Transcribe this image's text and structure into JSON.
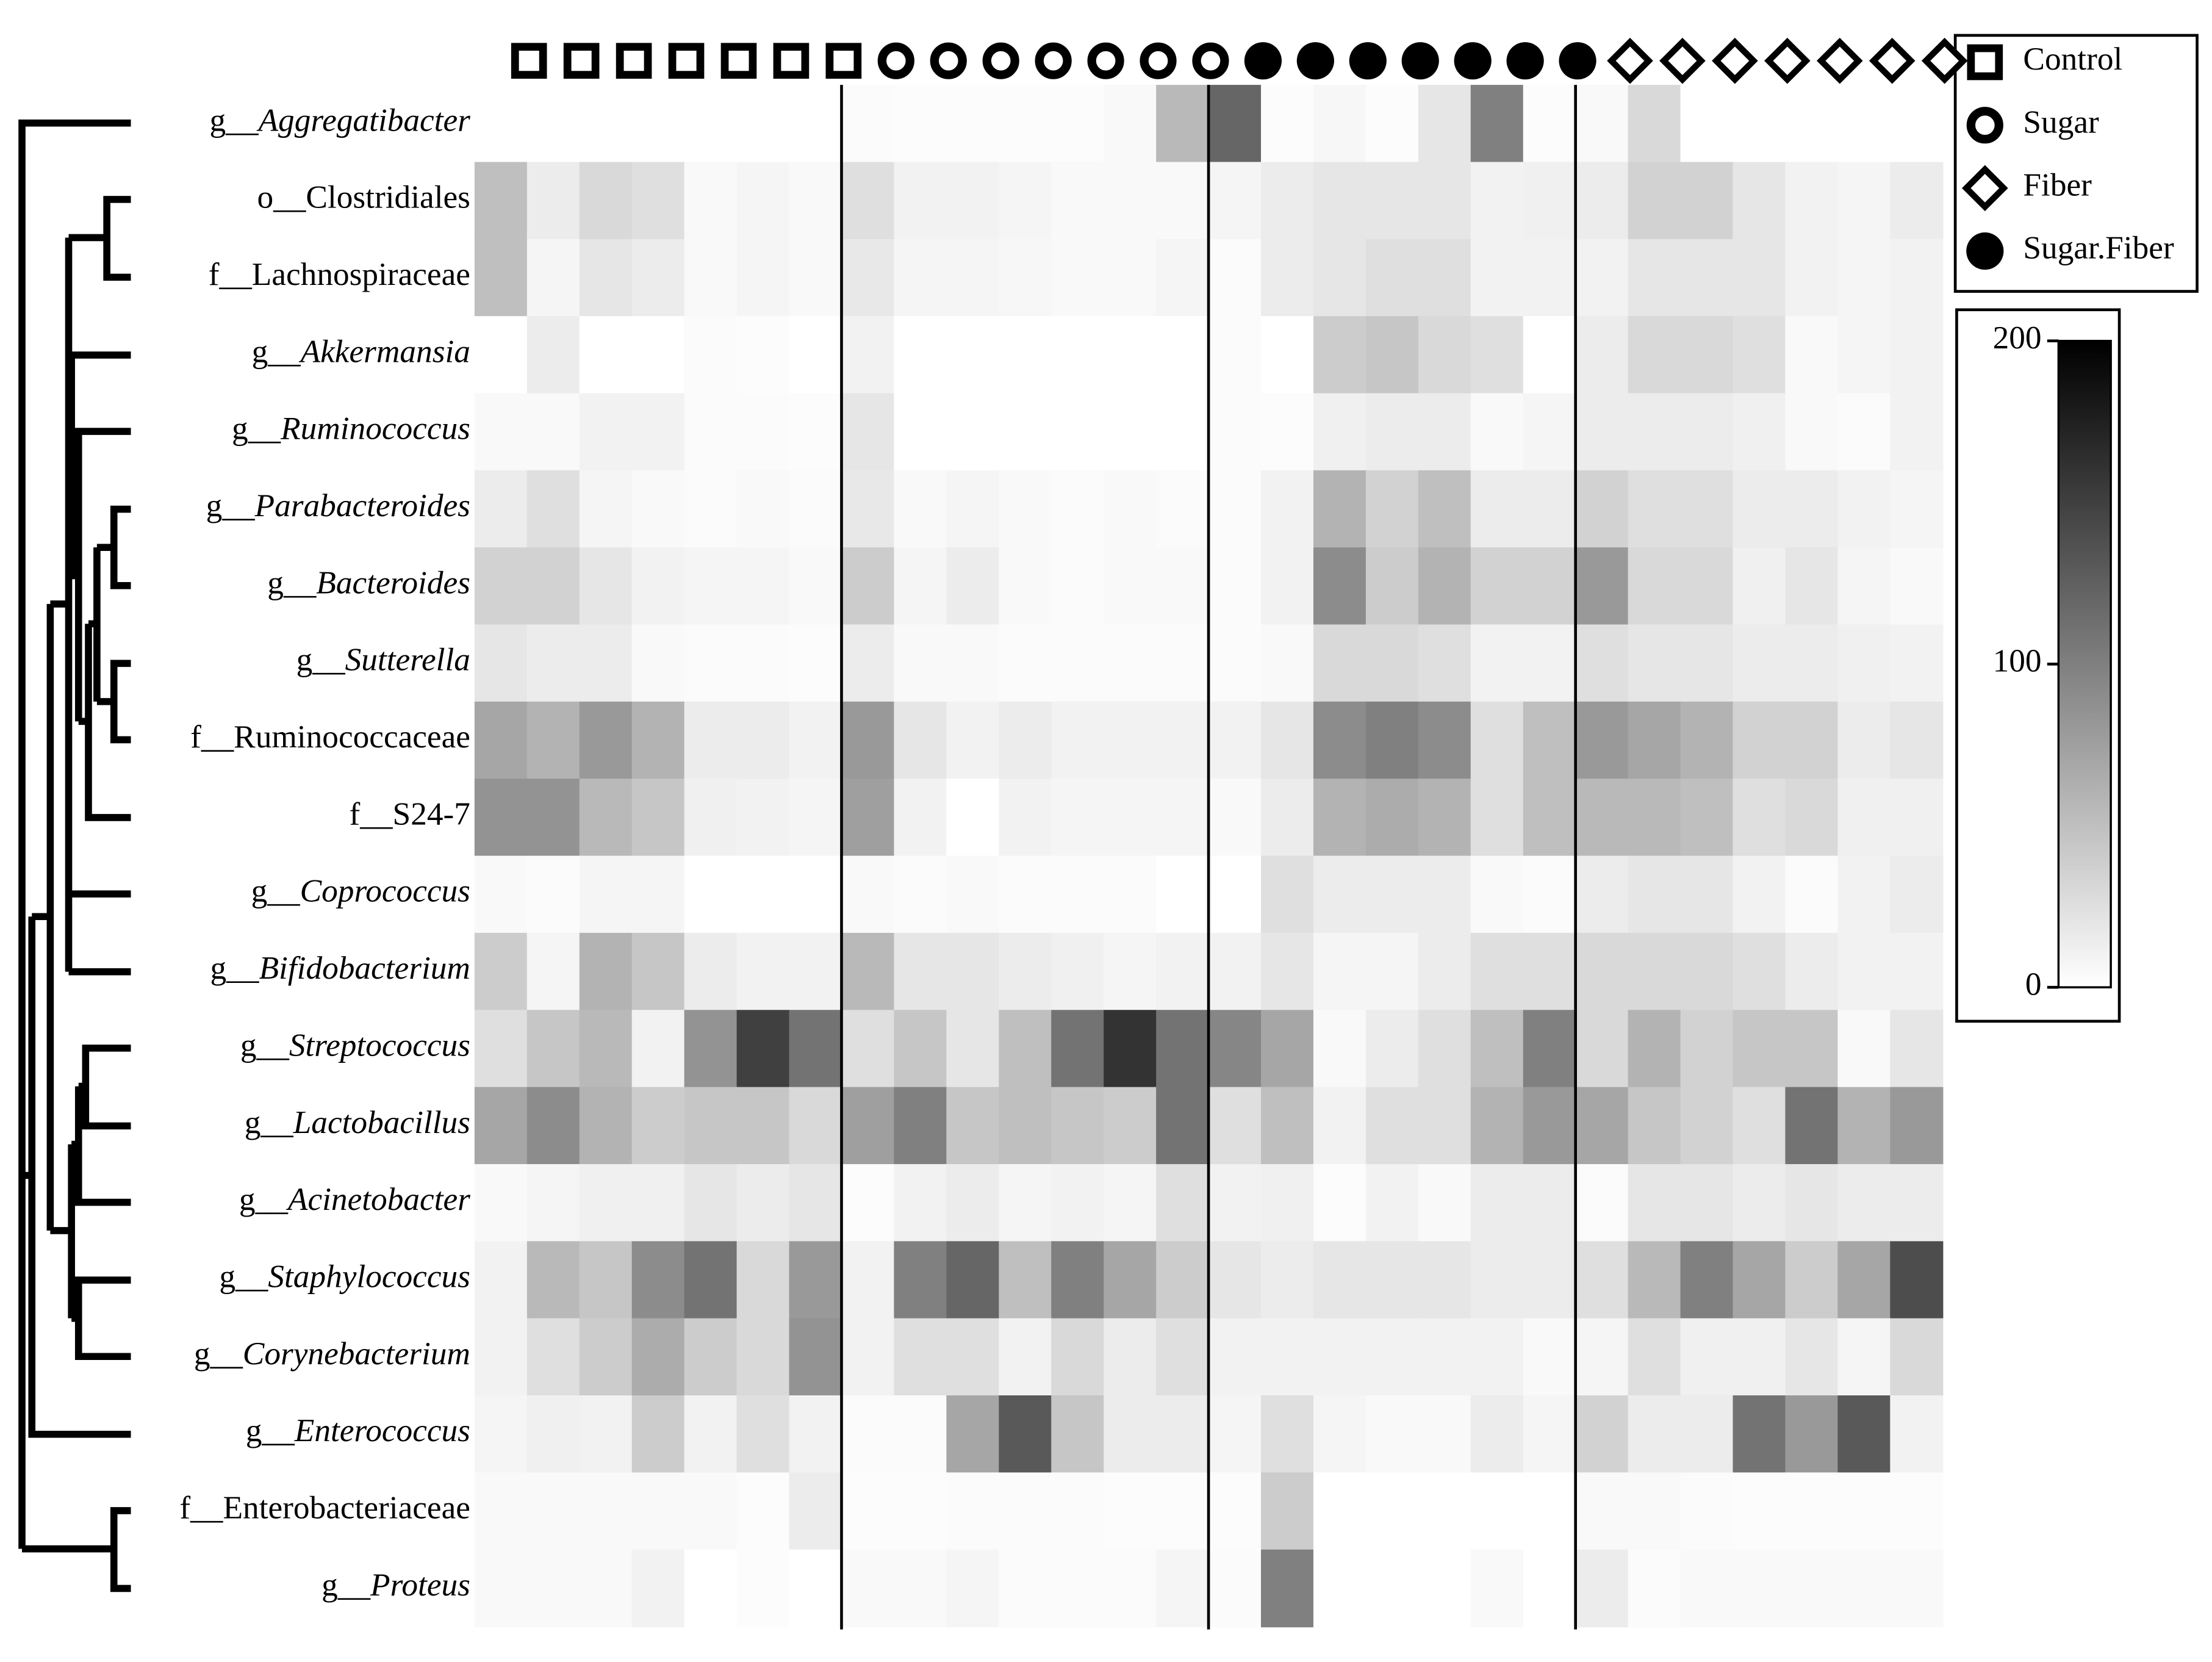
{
  "chart_data": {
    "type": "heatmap",
    "rows": [
      {
        "prefix": "g__",
        "name": "Aggregatibacter",
        "italic": true
      },
      {
        "prefix": "o__",
        "name": "Clostridiales",
        "italic": false
      },
      {
        "prefix": "f__",
        "name": "Lachnospiraceae",
        "italic": false
      },
      {
        "prefix": "g__",
        "name": "Akkermansia",
        "italic": true
      },
      {
        "prefix": "g__",
        "name": "Ruminococcus",
        "italic": true
      },
      {
        "prefix": "g__",
        "name": "Parabacteroides",
        "italic": true
      },
      {
        "prefix": "g__",
        "name": "Bacteroides",
        "italic": true
      },
      {
        "prefix": "g__",
        "name": "Sutterella",
        "italic": true
      },
      {
        "prefix": "f__",
        "name": "Ruminococcaceae",
        "italic": false
      },
      {
        "prefix": "f__",
        "name": "S24-7",
        "italic": false
      },
      {
        "prefix": "g__",
        "name": "Coprococcus",
        "italic": true
      },
      {
        "prefix": "g__",
        "name": "Bifidobacterium",
        "italic": true
      },
      {
        "prefix": "g__",
        "name": "Streptococcus",
        "italic": true
      },
      {
        "prefix": "g__",
        "name": "Lactobacillus",
        "italic": true
      },
      {
        "prefix": "g__",
        "name": "Acinetobacter",
        "italic": true
      },
      {
        "prefix": "g__",
        "name": "Staphylococcus",
        "italic": true
      },
      {
        "prefix": "g__",
        "name": "Corynebacterium",
        "italic": true
      },
      {
        "prefix": "g__",
        "name": "Enterococcus",
        "italic": true
      },
      {
        "prefix": "f__",
        "name": "Enterobacteriaceae",
        "italic": false
      },
      {
        "prefix": "g__",
        "name": "Proteus",
        "italic": true
      }
    ],
    "legend": [
      {
        "name": "Control",
        "marker": "square"
      },
      {
        "name": "Sugar",
        "marker": "ring"
      },
      {
        "name": "Fiber",
        "marker": "diamond"
      },
      {
        "name": "Sugar.Fiber",
        "marker": "dot"
      }
    ],
    "column_groups": [
      "Control",
      "Control",
      "Control",
      "Control",
      "Control",
      "Control",
      "Control",
      "Sugar",
      "Sugar",
      "Sugar",
      "Sugar",
      "Sugar",
      "Sugar",
      "Sugar",
      "Sugar.Fiber",
      "Sugar.Fiber",
      "Sugar.Fiber",
      "Sugar.Fiber",
      "Sugar.Fiber",
      "Sugar.Fiber",
      "Sugar.Fiber",
      "Fiber",
      "Fiber",
      "Fiber",
      "Fiber",
      "Fiber",
      "Fiber",
      "Fiber"
    ],
    "values": [
      [
        0,
        0,
        0,
        0,
        0,
        0,
        0,
        3,
        2,
        2,
        2,
        2,
        5,
        55,
        120,
        2,
        6,
        2,
        20,
        100,
        2,
        5,
        30,
        0,
        0,
        0,
        0,
        0
      ],
      [
        50,
        15,
        30,
        25,
        5,
        8,
        5,
        25,
        10,
        10,
        8,
        5,
        5,
        5,
        8,
        15,
        20,
        20,
        20,
        10,
        12,
        15,
        35,
        35,
        20,
        10,
        8,
        15
      ],
      [
        50,
        8,
        20,
        15,
        5,
        8,
        5,
        18,
        8,
        8,
        6,
        5,
        5,
        8,
        3,
        15,
        20,
        25,
        25,
        10,
        10,
        10,
        20,
        20,
        20,
        10,
        8,
        10
      ],
      [
        0,
        15,
        0,
        0,
        3,
        2,
        0,
        10,
        0,
        0,
        0,
        0,
        0,
        0,
        3,
        0,
        40,
        45,
        30,
        25,
        0,
        15,
        30,
        30,
        25,
        5,
        8,
        10
      ],
      [
        5,
        5,
        10,
        10,
        3,
        3,
        2,
        20,
        0,
        0,
        0,
        0,
        0,
        0,
        3,
        2,
        12,
        15,
        15,
        5,
        8,
        15,
        15,
        15,
        12,
        5,
        3,
        10
      ],
      [
        15,
        25,
        8,
        5,
        3,
        5,
        3,
        18,
        5,
        8,
        5,
        3,
        5,
        3,
        3,
        10,
        60,
        35,
        50,
        15,
        15,
        35,
        25,
        25,
        15,
        15,
        10,
        8
      ],
      [
        35,
        35,
        20,
        10,
        8,
        8,
        5,
        40,
        8,
        15,
        5,
        3,
        5,
        5,
        3,
        10,
        90,
        40,
        60,
        35,
        35,
        80,
        30,
        30,
        12,
        20,
        8,
        5
      ],
      [
        20,
        15,
        15,
        5,
        3,
        3,
        2,
        15,
        5,
        5,
        3,
        3,
        3,
        3,
        3,
        5,
        30,
        30,
        25,
        10,
        10,
        25,
        20,
        20,
        15,
        15,
        12,
        10
      ],
      [
        70,
        60,
        80,
        60,
        15,
        15,
        10,
        80,
        20,
        10,
        15,
        10,
        10,
        10,
        10,
        20,
        90,
        100,
        90,
        25,
        50,
        80,
        70,
        60,
        35,
        35,
        15,
        20
      ],
      [
        85,
        85,
        55,
        45,
        12,
        10,
        8,
        75,
        10,
        0,
        10,
        8,
        8,
        8,
        5,
        15,
        60,
        65,
        60,
        25,
        50,
        55,
        55,
        50,
        25,
        30,
        12,
        12
      ],
      [
        5,
        3,
        8,
        8,
        0,
        0,
        0,
        5,
        3,
        5,
        3,
        3,
        3,
        0,
        0,
        25,
        15,
        15,
        15,
        5,
        3,
        15,
        20,
        20,
        10,
        3,
        10,
        15
      ],
      [
        40,
        8,
        60,
        45,
        15,
        10,
        10,
        55,
        20,
        20,
        15,
        12,
        8,
        10,
        10,
        20,
        8,
        8,
        15,
        25,
        25,
        30,
        30,
        30,
        25,
        15,
        10,
        10
      ],
      [
        25,
        45,
        55,
        10,
        85,
        150,
        110,
        25,
        45,
        20,
        50,
        110,
        160,
        110,
        95,
        70,
        5,
        15,
        25,
        50,
        100,
        30,
        60,
        35,
        45,
        45,
        5,
        20
      ],
      [
        70,
        90,
        60,
        40,
        45,
        45,
        30,
        75,
        100,
        45,
        50,
        45,
        40,
        110,
        25,
        50,
        10,
        25,
        25,
        60,
        80,
        70,
        45,
        35,
        25,
        110,
        60,
        80
      ],
      [
        5,
        8,
        12,
        12,
        20,
        15,
        20,
        2,
        10,
        15,
        8,
        10,
        8,
        25,
        10,
        12,
        2,
        10,
        5,
        15,
        15,
        3,
        20,
        20,
        15,
        20,
        15,
        15
      ],
      [
        10,
        55,
        45,
        90,
        110,
        30,
        80,
        10,
        100,
        120,
        50,
        100,
        70,
        40,
        20,
        15,
        20,
        20,
        20,
        15,
        15,
        25,
        55,
        100,
        70,
        40,
        70,
        140
      ],
      [
        10,
        25,
        40,
        65,
        40,
        30,
        85,
        10,
        25,
        25,
        10,
        30,
        15,
        25,
        10,
        10,
        10,
        10,
        10,
        10,
        5,
        8,
        25,
        12,
        12,
        20,
        8,
        30
      ],
      [
        8,
        12,
        10,
        40,
        10,
        25,
        10,
        3,
        3,
        70,
        130,
        45,
        15,
        15,
        8,
        25,
        8,
        5,
        5,
        15,
        8,
        35,
        15,
        15,
        110,
        80,
        130,
        10
      ],
      [
        5,
        5,
        5,
        5,
        5,
        2,
        15,
        2,
        2,
        3,
        3,
        3,
        2,
        2,
        2,
        40,
        0,
        0,
        0,
        0,
        0,
        5,
        5,
        3,
        2,
        2,
        2,
        2
      ],
      [
        5,
        5,
        5,
        10,
        0,
        2,
        0,
        5,
        5,
        8,
        3,
        3,
        3,
        8,
        3,
        100,
        0,
        0,
        0,
        5,
        0,
        15,
        3,
        5,
        5,
        5,
        5,
        5
      ]
    ],
    "zlim": [
      0,
      200
    ],
    "zticks": [
      0,
      100,
      200
    ],
    "colormap": [
      "#ffffff",
      "#000000"
    ]
  }
}
